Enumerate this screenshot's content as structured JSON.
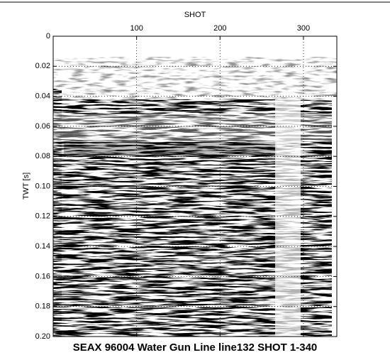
{
  "chart_data": {
    "type": "seismic-section",
    "title": "SEAX 96004 Water Gun Line line132 SHOT 1-340",
    "x_label": "SHOT",
    "y_label": "TWT [s]",
    "xlim": [
      0,
      340
    ],
    "xticks": [
      100,
      200,
      300
    ],
    "ylim": [
      0,
      0.2
    ],
    "yticks": [
      0,
      0.02,
      0.04,
      0.06,
      0.08,
      {
        "value": 0.1,
        "label": "0.10"
      },
      0.12,
      0.14,
      0.16,
      0.18,
      {
        "value": 0.2,
        "label": "0.20"
      }
    ],
    "y_inverted": true,
    "x_axis_position": "top",
    "grid": true
  }
}
